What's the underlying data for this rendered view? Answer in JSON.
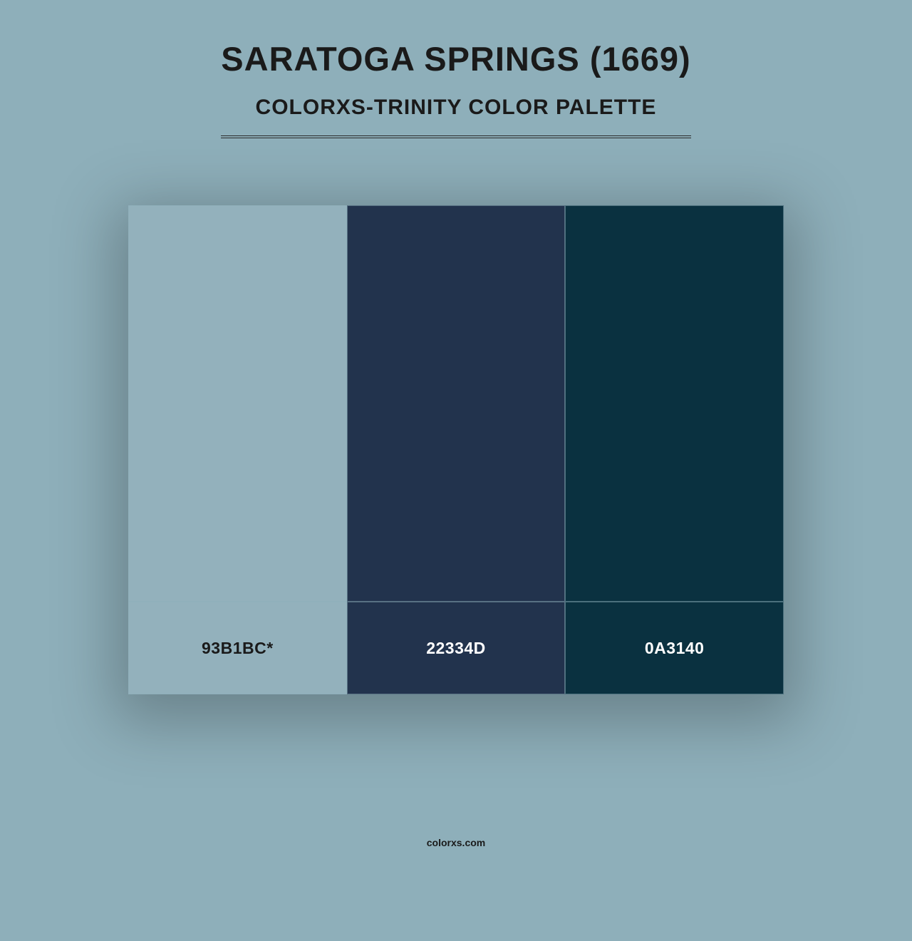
{
  "header": {
    "title": "SARATOGA SPRINGS (1669)",
    "subtitle": "COLORXS-TRINITY COLOR PALETTE"
  },
  "palette": {
    "background_color": "#8eafba",
    "title_color": "#1a1a1a",
    "title_fontsize": 47,
    "subtitle_fontsize": 30,
    "swatch_height": 556,
    "label_height": 130,
    "label_fontsize": 23,
    "divider_color": "#2a2a2a",
    "swatches": [
      {
        "hex": "#93b1bc",
        "label": "93B1BC*",
        "label_color": "#1a1a1a"
      },
      {
        "hex": "#22334d",
        "label": "22334D",
        "label_color": "#ffffff"
      },
      {
        "hex": "#0a3140",
        "label": "0A3140",
        "label_color": "#ffffff"
      }
    ]
  },
  "footer": {
    "text": "colorxs.com"
  }
}
